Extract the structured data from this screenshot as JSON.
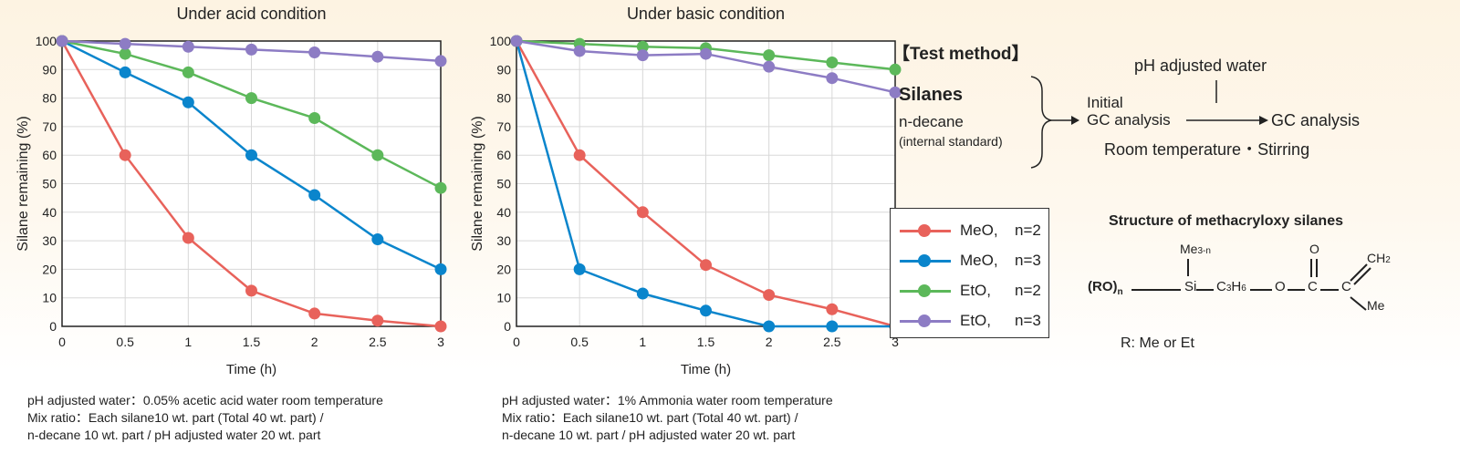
{
  "colors": {
    "MeO_n2": "#e8625b",
    "MeO_n3": "#0a85cc",
    "EtO_n2": "#5cb85a",
    "EtO_n3": "#8d7cc4"
  },
  "legend": [
    {
      "a": "MeO,",
      "b": "n=2",
      "color": "#e8625b"
    },
    {
      "a": "MeO,",
      "b": "n=3",
      "color": "#0a85cc"
    },
    {
      "a": "EtO,",
      "b": "n=2",
      "color": "#5cb85a"
    },
    {
      "a": "EtO,",
      "b": "n=3",
      "color": "#8d7cc4"
    }
  ],
  "chart_data": [
    {
      "type": "line",
      "title": "Under acid condition",
      "xlabel": "Time (h)",
      "ylabel": "Silane remaining (%)",
      "x": [
        0,
        0.5,
        1,
        1.5,
        2,
        2.5,
        3
      ],
      "xticks": [
        "0",
        "0.5",
        "1",
        "1.5",
        "2",
        "2.5",
        "3"
      ],
      "yticks": [
        "0",
        "10",
        "20",
        "30",
        "40",
        "50",
        "60",
        "70",
        "80",
        "90",
        "100"
      ],
      "xlim": [
        0,
        3
      ],
      "ylim": [
        0,
        100
      ],
      "grid": true,
      "legend_position": "right",
      "series": [
        {
          "name": "MeO, n=2",
          "values": [
            100,
            60,
            31,
            12.5,
            4.5,
            2,
            0
          ]
        },
        {
          "name": "MeO, n=3",
          "values": [
            100,
            89,
            78.5,
            60,
            46,
            30.5,
            20
          ]
        },
        {
          "name": "EtO, n=2",
          "values": [
            100,
            95.5,
            89,
            80,
            73,
            60,
            48.5
          ]
        },
        {
          "name": "EtO, n=3",
          "values": [
            100,
            99,
            98,
            97,
            96,
            94.5,
            93
          ]
        }
      ]
    },
    {
      "type": "line",
      "title": "Under basic condition",
      "xlabel": "Time (h)",
      "ylabel": "Silane remaining (%)",
      "x": [
        0,
        0.5,
        1,
        1.5,
        2,
        2.5,
        3
      ],
      "xticks": [
        "0",
        "0.5",
        "1",
        "1.5",
        "2",
        "2.5",
        "3"
      ],
      "yticks": [
        "0",
        "10",
        "20",
        "30",
        "40",
        "50",
        "60",
        "70",
        "80",
        "90",
        "100"
      ],
      "xlim": [
        0,
        3
      ],
      "ylim": [
        0,
        100
      ],
      "grid": true,
      "legend_position": "right",
      "series": [
        {
          "name": "MeO, n=2",
          "values": [
            100,
            60,
            40,
            21.5,
            11,
            6,
            0
          ]
        },
        {
          "name": "MeO, n=3",
          "values": [
            100,
            20,
            11.5,
            5.5,
            0,
            0,
            0
          ]
        },
        {
          "name": "EtO, n=2",
          "values": [
            100,
            99,
            98,
            97.5,
            95,
            92.5,
            90
          ]
        },
        {
          "name": "EtO, n=3",
          "values": [
            100,
            96.5,
            95,
            95.5,
            91,
            87,
            82
          ]
        }
      ]
    }
  ],
  "notes": {
    "acid": [
      "pH adjusted water：0.05% acetic acid water room temperature",
      "Mix ratio：Each silane10 wt. part (Total 40 wt. part) /",
      "n-decane 10 wt. part / pH adjusted water 20 wt. part"
    ],
    "basic": [
      "pH adjusted water：1% Ammonia water  room temperature",
      "Mix ratio：Each silane10 wt. part (Total 40 wt. part) /",
      "n-decane 10 wt. part / pH adjusted water 20 wt. part"
    ]
  },
  "method": {
    "title": "【Test method】",
    "silanes": "Silanes",
    "decane": "n-decane",
    "internal": "(internal standard)",
    "ph_water": "pH adjusted water",
    "initial": "Initial",
    "gc1": "GC analysis",
    "gc2": "GC analysis",
    "conditions": "Room temperature・Stirring"
  },
  "structure": {
    "title": "Structure of methacryloxy silanes",
    "ro": "(RO)",
    "ro_sub": "n",
    "me": "Me",
    "me_sub": "3-n",
    "si": "Si",
    "c": "C",
    "c_sub1": "3",
    "h": "H",
    "h_sub": "6",
    "o": "O",
    "o_top": "O",
    "c2": "C",
    "c3": "C",
    "ch": "CH",
    "ch_sub": "2",
    "me2": "Me",
    "r_note": "R: Me or Et"
  }
}
